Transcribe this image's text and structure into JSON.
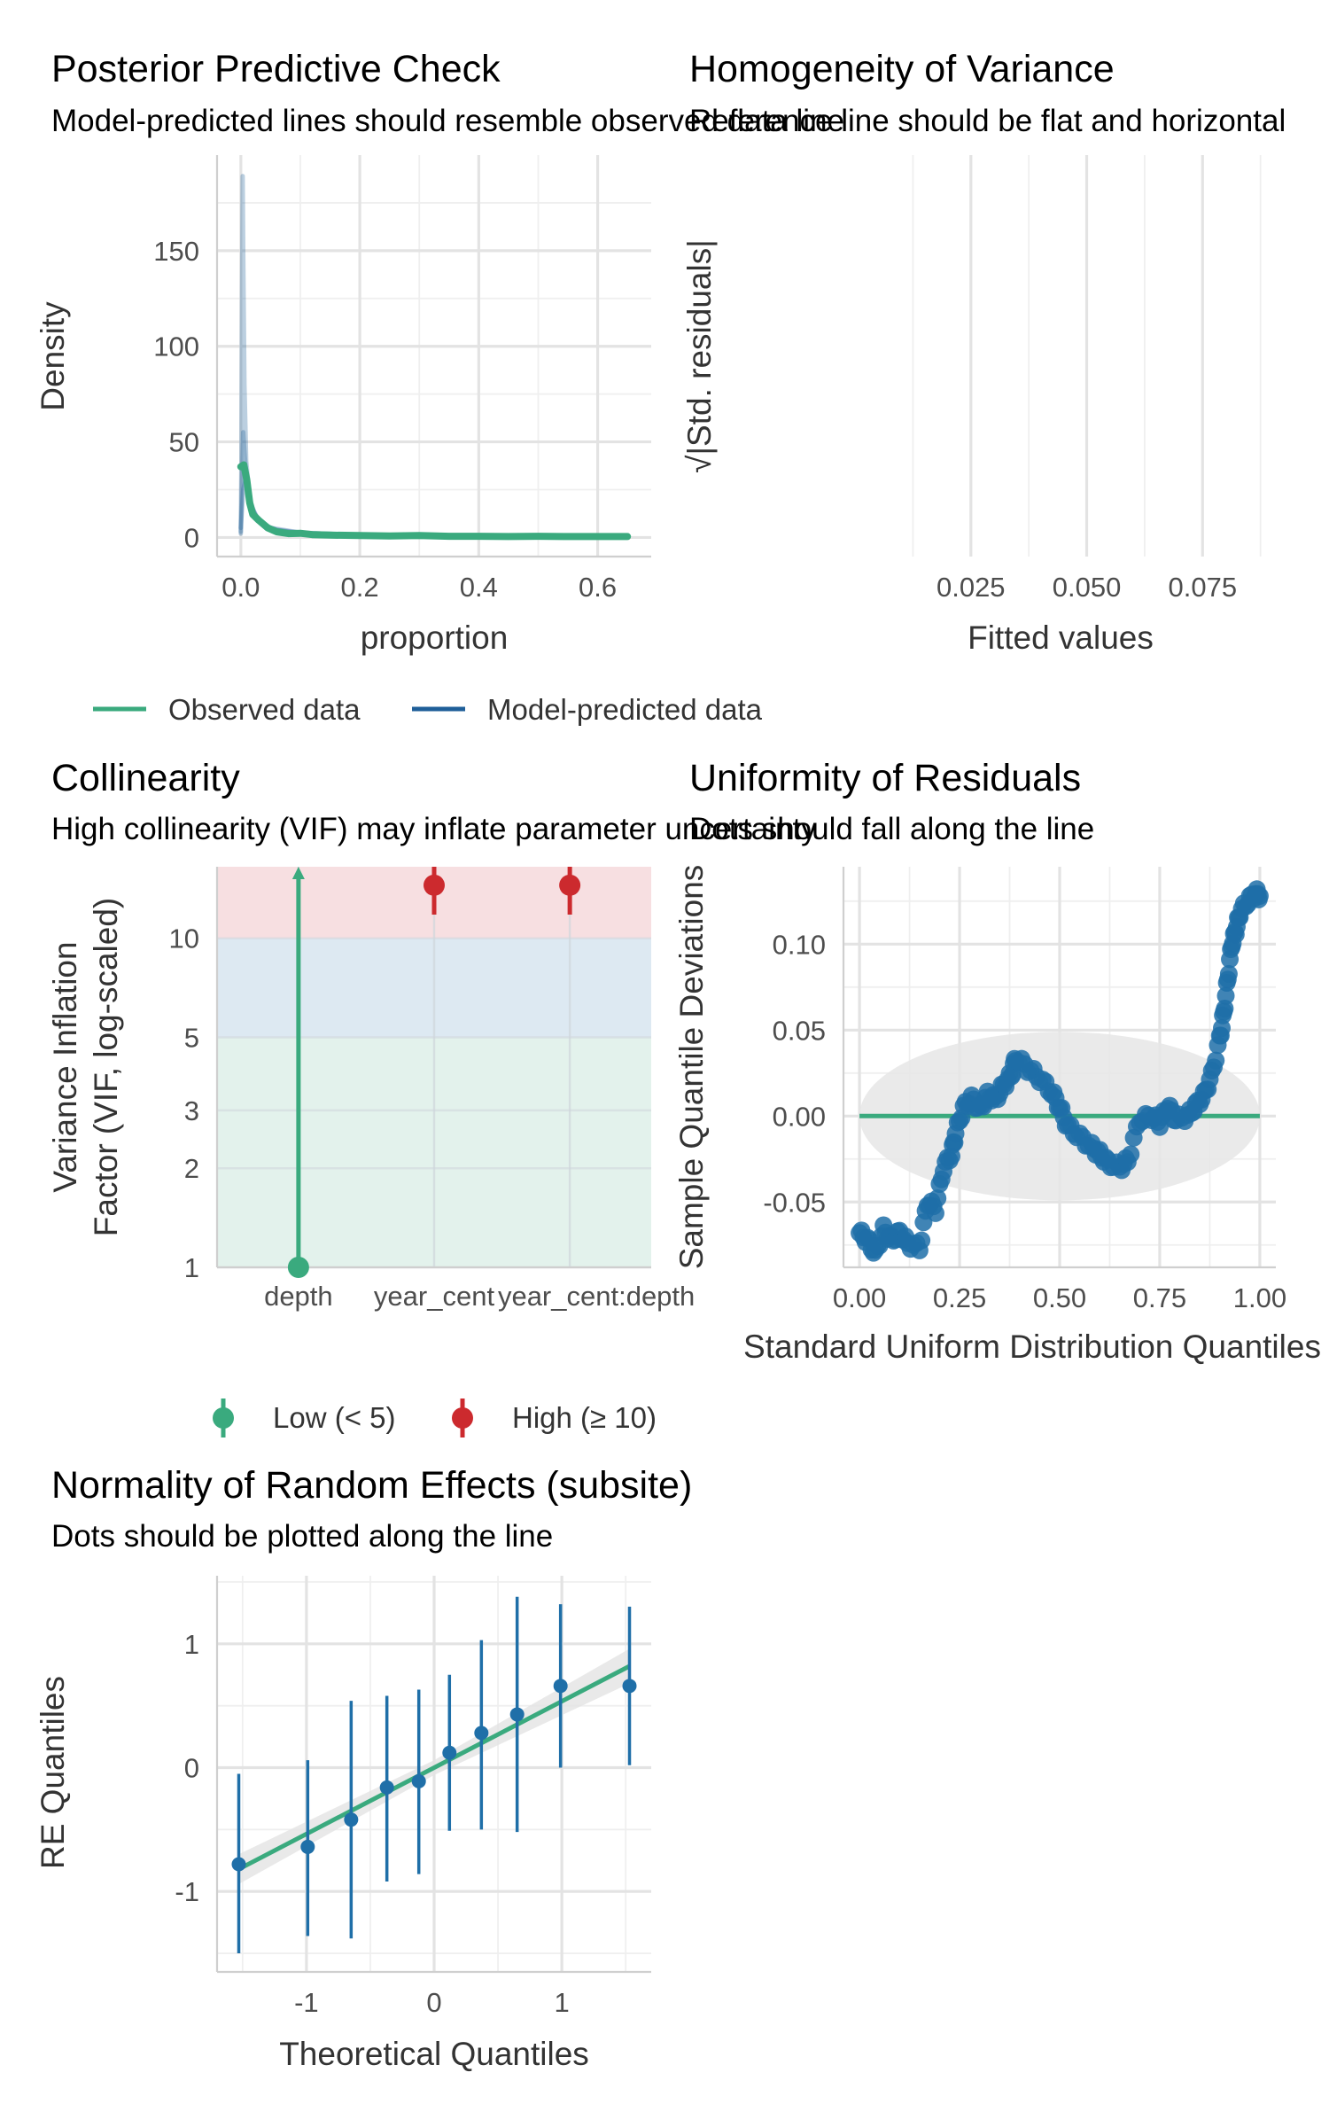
{
  "chart_data": [
    {
      "id": "ppc",
      "type": "line",
      "title": "Posterior Predictive Check",
      "subtitle": "Model-predicted lines should resemble observed data line",
      "xlabel": "proportion",
      "ylabel": "Density",
      "xlim": [
        -0.04,
        0.69
      ],
      "ylim": [
        -10,
        200
      ],
      "xticks": [
        0.0,
        0.2,
        0.4,
        0.6
      ],
      "xtick_labels": [
        "0.0",
        "0.2",
        "0.4",
        "0.6"
      ],
      "yticks": [
        0,
        50,
        100,
        150
      ],
      "ytick_labels": [
        "0",
        "50",
        "100",
        "150"
      ],
      "grid": true,
      "legend": {
        "position": "bottom",
        "items": [
          {
            "label": "Observed data",
            "color": "#3aaa7e"
          },
          {
            "label": "Model-predicted data",
            "color": "#1f5f99"
          }
        ]
      },
      "series": [
        {
          "name": "Model-predicted data",
          "color": "#1f5f99",
          "points": [
            [
              0.0,
              2
            ],
            [
              0.001,
              40
            ],
            [
              0.002,
              120
            ],
            [
              0.003,
              189
            ],
            [
              0.004,
              150
            ],
            [
              0.006,
              80
            ],
            [
              0.009,
              40
            ],
            [
              0.015,
              20
            ],
            [
              0.025,
              11
            ],
            [
              0.04,
              6
            ],
            [
              0.06,
              4
            ],
            [
              0.1,
              2
            ],
            [
              0.2,
              1
            ],
            [
              0.4,
              0.5
            ],
            [
              0.65,
              0.3
            ]
          ]
        },
        {
          "name": "Model-predicted data",
          "color": "#1f5f99",
          "points": [
            [
              0.0,
              3
            ],
            [
              0.002,
              30
            ],
            [
              0.004,
              55
            ],
            [
              0.006,
              45
            ],
            [
              0.01,
              28
            ],
            [
              0.02,
              14
            ],
            [
              0.035,
              7
            ],
            [
              0.06,
              4
            ],
            [
              0.1,
              2.5
            ],
            [
              0.2,
              1.2
            ],
            [
              0.4,
              0.6
            ],
            [
              0.65,
              0.3
            ]
          ]
        },
        {
          "name": "Model-predicted data",
          "color": "#1f5f99",
          "points": [
            [
              0.0,
              5
            ],
            [
              0.004,
              25
            ],
            [
              0.008,
              30
            ],
            [
              0.015,
              18
            ],
            [
              0.03,
              9
            ],
            [
              0.05,
              5
            ],
            [
              0.1,
              2.5
            ],
            [
              0.2,
              1.2
            ],
            [
              0.4,
              0.6
            ],
            [
              0.65,
              0.3
            ]
          ]
        },
        {
          "name": "Observed data",
          "color": "#3aaa7e",
          "points": [
            [
              0.0,
              37
            ],
            [
              0.005,
              38
            ],
            [
              0.01,
              30
            ],
            [
              0.015,
              18
            ],
            [
              0.02,
              12
            ],
            [
              0.03,
              9
            ],
            [
              0.045,
              5
            ],
            [
              0.06,
              3
            ],
            [
              0.08,
              2
            ],
            [
              0.1,
              2.2
            ],
            [
              0.12,
              1.5
            ],
            [
              0.15,
              1.2
            ],
            [
              0.2,
              1.0
            ],
            [
              0.25,
              0.8
            ],
            [
              0.3,
              1.0
            ],
            [
              0.35,
              0.6
            ],
            [
              0.4,
              0.6
            ],
            [
              0.45,
              0.5
            ],
            [
              0.5,
              0.6
            ],
            [
              0.55,
              0.5
            ],
            [
              0.6,
              0.5
            ],
            [
              0.65,
              0.5
            ]
          ]
        }
      ]
    },
    {
      "id": "homog",
      "type": "scatter",
      "title": "Homogeneity of Variance",
      "subtitle": "Reference line should be flat and horizontal",
      "xlabel": "Fitted values",
      "ylabel": "√|Std. residuals|",
      "xlim": [
        0.0,
        0.0889
      ],
      "xticks": [
        0.025,
        0.05,
        0.075
      ],
      "xtick_labels": [
        "0.025",
        "0.050",
        "0.075"
      ],
      "minor_xticks": [
        0.0125,
        0.0375,
        0.0625,
        0.0875
      ],
      "grid": true,
      "series": []
    },
    {
      "id": "vif",
      "type": "scatter",
      "title": "Collinearity",
      "subtitle": "High collinearity (VIF) may inflate parameter uncertainty",
      "xlabel": "",
      "ylabel": "Variance Inflation Factor (VIF, log-scaled)",
      "ylabel_lines": [
        "Variance Inflation",
        "Factor (VIF, log-scaled)"
      ],
      "y_scale": "log",
      "ylim": [
        1,
        16.5
      ],
      "yticks": [
        1,
        2,
        3,
        5,
        10
      ],
      "ytick_labels": [
        "1",
        "2",
        "3",
        "5",
        "10"
      ],
      "categories": [
        "depth",
        "year_cent",
        "year_cent:depth"
      ],
      "bands": [
        {
          "from": 1,
          "to": 5,
          "color": "#e3f2ec"
        },
        {
          "from": 5,
          "to": 10,
          "color": "#dde9f2"
        },
        {
          "from": 10,
          "to": 16.5,
          "color": "#f7dfe1"
        }
      ],
      "legend": {
        "position": "bottom",
        "items": [
          {
            "label": "Low (< 5)",
            "color": "#3aaa7e"
          },
          {
            "label": "High (≥ 10)",
            "color": "#cc2a2e"
          }
        ]
      },
      "points": [
        {
          "category": "depth",
          "vif": 1.0,
          "ci_low": 1.0,
          "ci_high": 16.5,
          "group": "Low (< 5)",
          "arrow_up": true
        },
        {
          "category": "year_cent",
          "vif": 14.5,
          "ci_low": 11.8,
          "ci_high": 16.5,
          "group": "High (≥ 10)"
        },
        {
          "category": "year_cent:depth",
          "vif": 14.5,
          "ci_low": 11.8,
          "ci_high": 16.5,
          "group": "High (≥ 10)"
        }
      ],
      "grid": true
    },
    {
      "id": "uniform",
      "type": "scatter",
      "title": "Uniformity of Residuals",
      "subtitle": "Dots should fall along the line",
      "xlabel": "Standard Uniform Distribution Quantiles",
      "ylabel": "Sample Quantile Deviations",
      "xlim": [
        -0.04,
        1.04
      ],
      "ylim": [
        -0.088,
        0.145
      ],
      "xticks": [
        0.0,
        0.25,
        0.5,
        0.75,
        1.0
      ],
      "xtick_labels": [
        "0.00",
        "0.25",
        "0.50",
        "0.75",
        "1.00"
      ],
      "yticks": [
        -0.05,
        0.0,
        0.05,
        0.1
      ],
      "ytick_labels": [
        "-0.05",
        "0.00",
        "0.05",
        "0.10"
      ],
      "reference": {
        "y": 0,
        "x_from": 0.0,
        "x_to": 1.0,
        "color": "#3aaa7e"
      },
      "band": {
        "cx": 0.5,
        "cy": 0.0,
        "rx": 0.5,
        "ry": 0.049,
        "color": "#e6e6e6"
      },
      "curve": [
        [
          0.0,
          -0.068
        ],
        [
          0.02,
          -0.072
        ],
        [
          0.04,
          -0.08
        ],
        [
          0.06,
          -0.066
        ],
        [
          0.08,
          -0.072
        ],
        [
          0.1,
          -0.068
        ],
        [
          0.12,
          -0.074
        ],
        [
          0.15,
          -0.077
        ],
        [
          0.17,
          -0.05
        ],
        [
          0.19,
          -0.054
        ],
        [
          0.21,
          -0.03
        ],
        [
          0.23,
          -0.022
        ],
        [
          0.24,
          -0.01
        ],
        [
          0.26,
          0.005
        ],
        [
          0.28,
          0.01
        ],
        [
          0.3,
          0.004
        ],
        [
          0.32,
          0.012
        ],
        [
          0.34,
          0.01
        ],
        [
          0.36,
          0.018
        ],
        [
          0.38,
          0.024
        ],
        [
          0.39,
          0.034
        ],
        [
          0.42,
          0.028
        ],
        [
          0.45,
          0.022
        ],
        [
          0.48,
          0.014
        ],
        [
          0.5,
          0.005
        ],
        [
          0.52,
          -0.006
        ],
        [
          0.55,
          -0.012
        ],
        [
          0.58,
          -0.018
        ],
        [
          0.6,
          -0.022
        ],
        [
          0.62,
          -0.027
        ],
        [
          0.65,
          -0.03
        ],
        [
          0.67,
          -0.026
        ],
        [
          0.7,
          -0.002
        ],
        [
          0.73,
          0.0
        ],
        [
          0.75,
          -0.004
        ],
        [
          0.77,
          0.006
        ],
        [
          0.79,
          -0.002
        ],
        [
          0.82,
          0.0
        ],
        [
          0.84,
          0.006
        ],
        [
          0.86,
          0.012
        ],
        [
          0.88,
          0.024
        ],
        [
          0.9,
          0.045
        ],
        [
          0.91,
          0.06
        ],
        [
          0.92,
          0.08
        ],
        [
          0.93,
          0.1
        ],
        [
          0.94,
          0.108
        ],
        [
          0.95,
          0.118
        ],
        [
          0.97,
          0.125
        ],
        [
          0.99,
          0.13
        ],
        [
          1.0,
          0.128
        ]
      ],
      "point_color": "#1f6fa8",
      "grid": true
    },
    {
      "id": "re",
      "type": "scatter",
      "title": "Normality of Random Effects (subsite)",
      "subtitle": "Dots should be plotted along the line",
      "xlabel": "Theoretical Quantiles",
      "ylabel": "RE Quantiles",
      "xlim": [
        -1.7,
        1.7
      ],
      "ylim": [
        -1.65,
        1.55
      ],
      "xticks": [
        -1,
        0,
        1
      ],
      "xtick_labels": [
        "-1",
        "0",
        "1"
      ],
      "yticks": [
        -1,
        0,
        1
      ],
      "ytick_labels": [
        "-1",
        "0",
        "1"
      ],
      "fit": {
        "x": [
          -1.53,
          1.53
        ],
        "y": [
          -0.82,
          0.82
        ],
        "color": "#3aaa7e"
      },
      "points": [
        {
          "x": -1.53,
          "y": -0.78,
          "lo": -1.5,
          "hi": -0.05
        },
        {
          "x": -0.99,
          "y": -0.64,
          "lo": -1.36,
          "hi": 0.06
        },
        {
          "x": -0.65,
          "y": -0.42,
          "lo": -1.38,
          "hi": 0.54
        },
        {
          "x": -0.37,
          "y": -0.16,
          "lo": -0.92,
          "hi": 0.58
        },
        {
          "x": -0.12,
          "y": -0.11,
          "lo": -0.86,
          "hi": 0.63
        },
        {
          "x": 0.12,
          "y": 0.12,
          "lo": -0.51,
          "hi": 0.75
        },
        {
          "x": 0.37,
          "y": 0.28,
          "lo": -0.5,
          "hi": 1.03
        },
        {
          "x": 0.65,
          "y": 0.43,
          "lo": -0.52,
          "hi": 1.38
        },
        {
          "x": 0.99,
          "y": 0.66,
          "lo": 0.0,
          "hi": 1.32
        },
        {
          "x": 1.53,
          "y": 0.66,
          "lo": 0.02,
          "hi": 1.3
        }
      ],
      "point_color": "#1f6fa8",
      "grid": true
    }
  ]
}
